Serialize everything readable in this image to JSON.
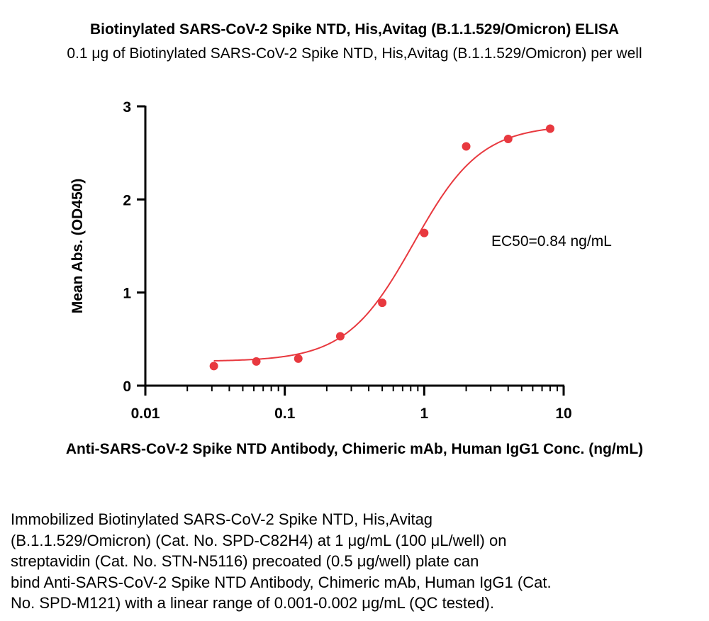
{
  "chart_data": {
    "type": "scatter",
    "title": "Biotinylated SARS-CoV-2 Spike NTD, His,Avitag (B.1.1.529/Omicron) ELISA",
    "subtitle": "0.1 μg of Biotinylated SARS-CoV-2 Spike NTD, His,Avitag (B.1.1.529/Omicron) per well",
    "xlabel": "Anti-SARS-CoV-2 Spike NTD Antibody, Chimeric mAb, Human IgG1 Conc. (ng/mL)",
    "ylabel": "Mean Abs. (OD450)",
    "x_scale": "log",
    "xlim": [
      0.01,
      10
    ],
    "ylim": [
      0,
      3
    ],
    "x_ticks": [
      0.01,
      0.1,
      1,
      10
    ],
    "x_tick_labels": [
      "0.01",
      "0.1",
      "1",
      "10"
    ],
    "y_ticks": [
      0,
      1,
      2,
      3
    ],
    "y_tick_labels": [
      "0",
      "1",
      "2",
      "3"
    ],
    "grid": false,
    "color": "#e8393f",
    "series": [
      {
        "x": [
          0.031,
          0.0625,
          0.125,
          0.25,
          0.5,
          1.0,
          2.0,
          4.0,
          8.0
        ],
        "y": [
          0.21,
          0.26,
          0.29,
          0.53,
          0.89,
          1.64,
          2.57,
          2.65,
          2.76
        ]
      }
    ],
    "fit_curve": {
      "type": "4PL",
      "bottom": 0.26,
      "top": 2.8,
      "ec50": 0.84,
      "hill": 1.8
    },
    "annotations": [
      "EC50=0.84 ng/mL"
    ]
  },
  "caption_lines": [
    "Immobilized Biotinylated SARS-CoV-2 Spike NTD, His,Avitag",
    "(B.1.1.529/Omicron) (Cat. No. SPD-C82H4) at 1 μg/mL (100 μL/well) on",
    "streptavidin (Cat. No. STN-N5116) precoated (0.5 μg/well) plate can",
    "bind Anti-SARS-CoV-2 Spike NTD Antibody, Chimeric mAb, Human IgG1 (Cat.",
    "No. SPD-M121) with a linear range of 0.001-0.002 μg/mL (QC tested)."
  ]
}
